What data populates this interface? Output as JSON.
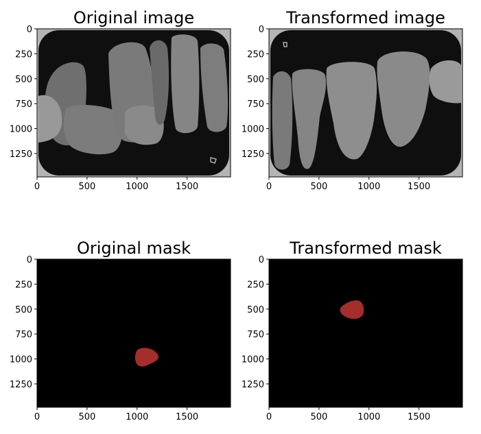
{
  "chart_data": [
    {
      "type": "image",
      "title": "Original image",
      "xlim": [
        0,
        1935
      ],
      "ylim": [
        1484,
        0
      ],
      "xticks": [
        "0",
        "500",
        "1000",
        "1500"
      ],
      "yticks": [
        "0",
        "250",
        "500",
        "750",
        "1000",
        "1250"
      ],
      "content": "dental radiograph (grayscale)"
    },
    {
      "type": "image",
      "title": "Transformed image",
      "xlim": [
        0,
        1935
      ],
      "ylim": [
        1484,
        0
      ],
      "xticks": [
        "0",
        "500",
        "1000",
        "1500"
      ],
      "yticks": [
        "0",
        "250",
        "500",
        "750",
        "1000",
        "1250"
      ],
      "content": "dental radiograph (grayscale, transformed)"
    },
    {
      "type": "image",
      "title": "Original mask",
      "xlim": [
        0,
        1935
      ],
      "ylim": [
        1484,
        0
      ],
      "xticks": [
        "0",
        "500",
        "1000",
        "1500"
      ],
      "yticks": [
        "0",
        "250",
        "500",
        "750",
        "1000",
        "1250"
      ],
      "background_color": "#000000",
      "region_color": "#a32e2c",
      "region_center": [
        1070,
        980
      ]
    },
    {
      "type": "image",
      "title": "Transformed mask",
      "xlim": [
        0,
        1935
      ],
      "ylim": [
        1484,
        0
      ],
      "xticks": [
        "0",
        "500",
        "1000",
        "1500"
      ],
      "yticks": [
        "0",
        "250",
        "500",
        "750",
        "1000",
        "1250"
      ],
      "background_color": "#000000",
      "region_color": "#a32e2c",
      "region_center": [
        850,
        505
      ]
    }
  ]
}
